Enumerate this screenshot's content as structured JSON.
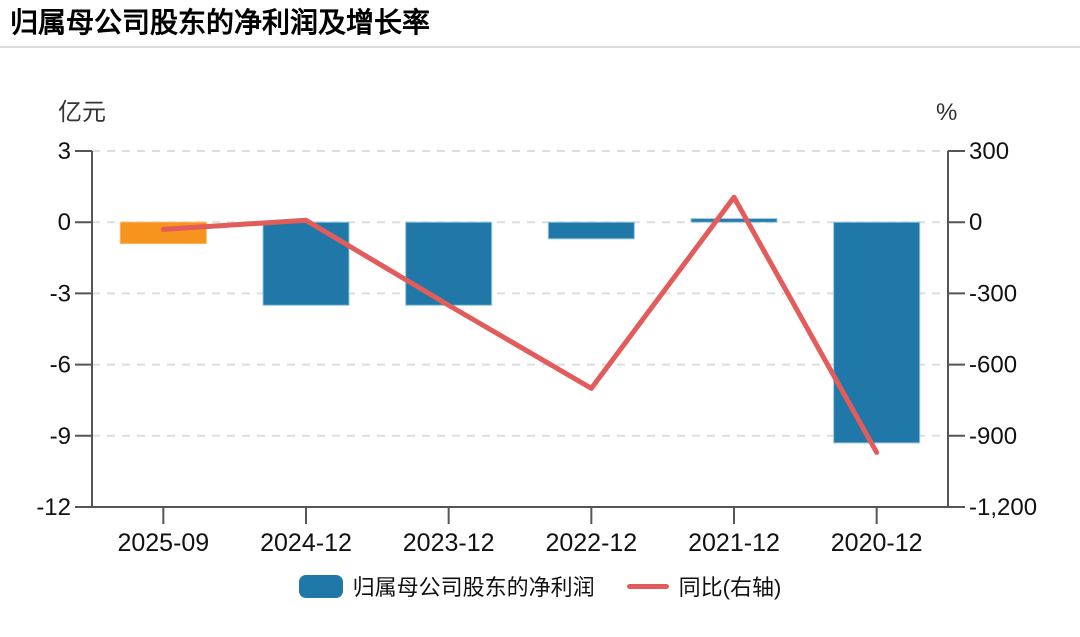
{
  "chart_data": {
    "type": "combo",
    "title": "归属母公司股东的净利润及增长率",
    "categories": [
      "2025-09",
      "2024-12",
      "2023-12",
      "2022-12",
      "2021-12",
      "2020-12"
    ],
    "series": [
      {
        "name": "归属母公司股东的净利润",
        "type": "bar",
        "axis": "left",
        "unit": "亿元",
        "values": [
          -0.9,
          -3.5,
          -3.5,
          -0.7,
          0.15,
          -9.3
        ],
        "bar_colors": [
          "#F7941E",
          "#1F78A8",
          "#1F78A8",
          "#1F78A8",
          "#1F78A8",
          "#1F78A8"
        ],
        "bar_borders": [
          "#FAB561",
          "#8FC4DE",
          "#8FC4DE",
          "#8FC4DE",
          "#8FC4DE",
          "#8FC4DE"
        ],
        "legend_color": "#1F78A8"
      },
      {
        "name": "同比(右轴)",
        "type": "line",
        "axis": "right",
        "unit": "%",
        "values": [
          -30,
          8,
          -350,
          -700,
          105,
          -970
        ],
        "color": "#E25C5C"
      }
    ],
    "left_axis": {
      "label": "亿元",
      "min": -12,
      "max": 3,
      "ticks": [
        {
          "label": "3",
          "value": 3
        },
        {
          "label": "0",
          "value": 0
        },
        {
          "label": "-3",
          "value": -3
        },
        {
          "label": "-6",
          "value": -6
        },
        {
          "label": "-9",
          "value": -9
        },
        {
          "label": "-12",
          "value": -12
        }
      ]
    },
    "right_axis": {
      "label": "%",
      "min": -1200,
      "max": 300,
      "ticks": [
        {
          "label": "300",
          "value": 300
        },
        {
          "label": "0",
          "value": 0
        },
        {
          "label": "-300",
          "value": -300
        },
        {
          "label": "-600",
          "value": -600
        },
        {
          "label": "-900",
          "value": -900
        },
        {
          "label": "-1,200",
          "value": -1200
        }
      ]
    },
    "grid": true,
    "legend_position": "bottom"
  },
  "colors": {
    "background": "#FFFFFF",
    "title": "#000000",
    "divider": "#DDDDDD",
    "grid": "#DDDDDD",
    "axis": "#555555",
    "tick_text": "#111111",
    "unit_text": "#333333"
  }
}
